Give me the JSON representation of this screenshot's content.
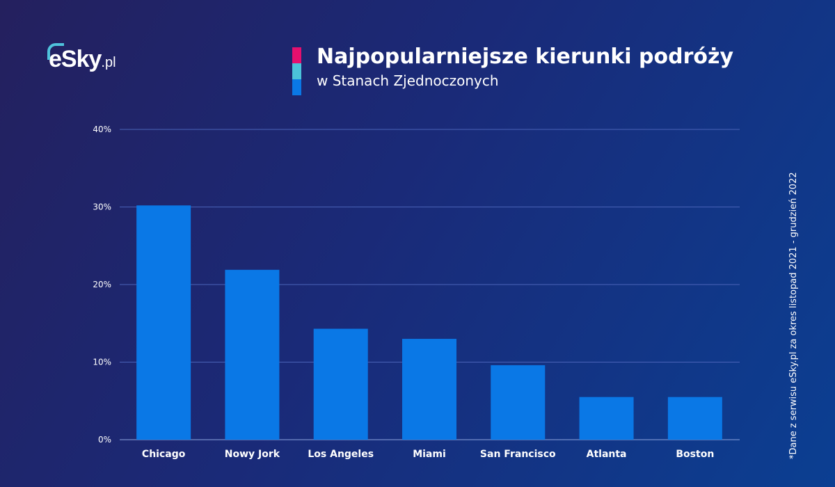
{
  "logo": {
    "text": "eSky",
    "suffix": ".pl"
  },
  "header": {
    "title": "Najpopularniejsze kierunki podróży",
    "subtitle": "w Stanach Zjednoczonych",
    "accent_colors": [
      "#e5106e",
      "#4bc3d9",
      "#0a78e6"
    ]
  },
  "source_note": "*Dane z serwisu eSky.pl za okres listopad 2021 - grudzień 2022",
  "chart_data": {
    "type": "bar",
    "categories": [
      "Chicago",
      "Nowy Jork",
      "Los Angeles",
      "Miami",
      "San Francisco",
      "Atlanta",
      "Boston"
    ],
    "values": [
      30.2,
      21.9,
      14.3,
      13.0,
      9.6,
      5.5,
      5.5
    ],
    "ylim": [
      0,
      40
    ],
    "yticks": [
      "0%",
      "10%",
      "20%",
      "30%",
      "40%"
    ],
    "ytick_values": [
      0,
      10,
      20,
      30,
      40
    ],
    "grid": true,
    "bar_color": "#0a78e6",
    "xlabel": "",
    "ylabel": ""
  }
}
